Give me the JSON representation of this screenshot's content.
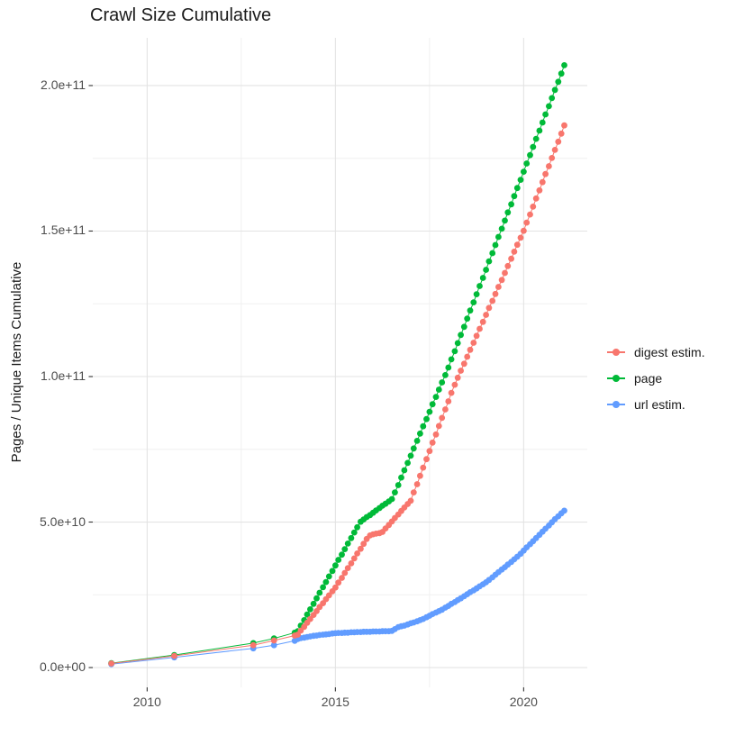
{
  "title": "Crawl Size Cumulative",
  "axes": {
    "y_title": "Pages / Unique Items Cumulative",
    "x_title": "",
    "y_ticks": [
      {
        "value_e9": 0,
        "label": "0.0e+00"
      },
      {
        "value_e9": 50,
        "label": "5.0e+10"
      },
      {
        "value_e9": 100,
        "label": "1.0e+11"
      },
      {
        "value_e9": 150,
        "label": "1.5e+11"
      },
      {
        "value_e9": 200,
        "label": "2.0e+11"
      }
    ],
    "x_ticks": [
      {
        "value": 2010,
        "label": "2010"
      },
      {
        "value": 2015,
        "label": "2015"
      },
      {
        "value": 2020,
        "label": "2020"
      }
    ],
    "y_minor_e9": [
      25,
      75,
      125,
      175
    ],
    "x_minor": [
      2012.5,
      2017.5
    ],
    "x_range": [
      2008.556,
      2021.69
    ],
    "y_range_e9": [
      -6.8,
      216.4
    ],
    "gridline_major_color": "#e3e3e3",
    "gridline_minor_color": "#f0f0f0",
    "tick_mark_color": "#333333"
  },
  "legend": {
    "position": "right",
    "items": [
      {
        "id": "digest-estim",
        "label": "digest estim.",
        "color": "#F8766D"
      },
      {
        "id": "page",
        "label": "page",
        "color": "#00BA38"
      },
      {
        "id": "url-estim",
        "label": "url estim.",
        "color": "#619CFF"
      }
    ]
  },
  "chart_data": {
    "type": "line",
    "marker": "point",
    "title": "Crawl Size Cumulative",
    "xlabel": "",
    "ylabel": "Pages / Unique Items Cumulative",
    "x_unit": "year (decimal)",
    "value_unit": "items, stored value x 1e9",
    "xlim": [
      2008.556,
      2021.69
    ],
    "ylim_e9": [
      -6.8,
      216.4
    ],
    "grid": true,
    "legend_position": "right",
    "series": [
      {
        "name": "digest estim.",
        "id": "digest-estim",
        "color": "#F8766D",
        "points": [
          [
            2009.05,
            1.4
          ],
          [
            2010.72,
            4.0
          ],
          [
            2012.82,
            7.7
          ],
          [
            2013.37,
            9.3
          ],
          [
            2013.92,
            11.0
          ],
          [
            2014.0,
            11.3
          ],
          [
            2014.08,
            12.7
          ],
          [
            2014.17,
            14.0
          ],
          [
            2014.25,
            15.4
          ],
          [
            2014.33,
            16.7
          ],
          [
            2014.42,
            18.1
          ],
          [
            2014.5,
            19.4
          ],
          [
            2014.58,
            20.8
          ],
          [
            2014.67,
            22.1
          ],
          [
            2014.75,
            23.5
          ],
          [
            2014.83,
            24.8
          ],
          [
            2014.92,
            26.2
          ],
          [
            2015.0,
            27.5
          ],
          [
            2015.08,
            29.2
          ],
          [
            2015.17,
            30.8
          ],
          [
            2015.25,
            32.5
          ],
          [
            2015.33,
            34.2
          ],
          [
            2015.42,
            35.8
          ],
          [
            2015.5,
            37.5
          ],
          [
            2015.58,
            39.2
          ],
          [
            2015.67,
            40.8
          ],
          [
            2015.75,
            42.5
          ],
          [
            2015.83,
            44.2
          ],
          [
            2015.92,
            45.4
          ],
          [
            2016.0,
            45.8
          ],
          [
            2016.08,
            46.0
          ],
          [
            2016.17,
            46.2
          ],
          [
            2016.25,
            46.6
          ],
          [
            2016.33,
            47.8
          ],
          [
            2016.42,
            49.0
          ],
          [
            2016.5,
            50.2
          ],
          [
            2016.58,
            51.4
          ],
          [
            2016.67,
            52.6
          ],
          [
            2016.75,
            53.8
          ],
          [
            2016.83,
            55.0
          ],
          [
            2016.92,
            56.2
          ],
          [
            2017.0,
            57.3
          ],
          [
            2017.08,
            60.2
          ],
          [
            2017.17,
            63.0
          ],
          [
            2017.25,
            65.9
          ],
          [
            2017.33,
            68.7
          ],
          [
            2017.42,
            71.6
          ],
          [
            2017.5,
            74.4
          ],
          [
            2017.58,
            77.3
          ],
          [
            2017.67,
            80.1
          ],
          [
            2017.75,
            83.0
          ],
          [
            2017.83,
            85.8
          ],
          [
            2017.92,
            88.7
          ],
          [
            2018.0,
            91.5
          ],
          [
            2018.08,
            94.4
          ],
          [
            2018.17,
            97.2
          ],
          [
            2018.25,
            99.6
          ],
          [
            2018.33,
            102.0
          ],
          [
            2018.42,
            104.4
          ],
          [
            2018.5,
            106.8
          ],
          [
            2018.58,
            109.2
          ],
          [
            2018.67,
            111.6
          ],
          [
            2018.75,
            114.0
          ],
          [
            2018.83,
            116.4
          ],
          [
            2018.92,
            118.8
          ],
          [
            2019.0,
            121.2
          ],
          [
            2019.08,
            123.6
          ],
          [
            2019.17,
            126.0
          ],
          [
            2019.25,
            128.4
          ],
          [
            2019.33,
            130.8
          ],
          [
            2019.42,
            133.2
          ],
          [
            2019.5,
            135.6
          ],
          [
            2019.58,
            138.0
          ],
          [
            2019.67,
            140.5
          ],
          [
            2019.75,
            142.9
          ],
          [
            2019.83,
            145.3
          ],
          [
            2019.92,
            147.7
          ],
          [
            2020.0,
            150.1
          ],
          [
            2020.08,
            152.9
          ],
          [
            2020.17,
            155.7
          ],
          [
            2020.25,
            158.4
          ],
          [
            2020.33,
            161.2
          ],
          [
            2020.42,
            164.0
          ],
          [
            2020.5,
            166.8
          ],
          [
            2020.58,
            169.6
          ],
          [
            2020.67,
            172.3
          ],
          [
            2020.75,
            175.1
          ],
          [
            2020.83,
            177.9
          ],
          [
            2020.92,
            180.7
          ],
          [
            2021.0,
            183.5
          ],
          [
            2021.08,
            186.3
          ]
        ]
      },
      {
        "name": "page",
        "id": "page",
        "color": "#00BA38",
        "points": [
          [
            2009.05,
            1.5
          ],
          [
            2010.72,
            4.3
          ],
          [
            2012.82,
            8.4
          ],
          [
            2013.37,
            10.0
          ],
          [
            2013.92,
            12.0
          ],
          [
            2014.0,
            12.5
          ],
          [
            2014.08,
            14.4
          ],
          [
            2014.17,
            16.3
          ],
          [
            2014.25,
            18.2
          ],
          [
            2014.33,
            20.0
          ],
          [
            2014.42,
            21.9
          ],
          [
            2014.5,
            23.8
          ],
          [
            2014.58,
            25.7
          ],
          [
            2014.67,
            27.6
          ],
          [
            2014.75,
            29.4
          ],
          [
            2014.83,
            31.3
          ],
          [
            2014.92,
            33.2
          ],
          [
            2015.0,
            35.1
          ],
          [
            2015.08,
            37.0
          ],
          [
            2015.17,
            38.8
          ],
          [
            2015.25,
            40.7
          ],
          [
            2015.33,
            42.6
          ],
          [
            2015.42,
            44.5
          ],
          [
            2015.5,
            46.4
          ],
          [
            2015.58,
            48.2
          ],
          [
            2015.67,
            50.1
          ],
          [
            2015.75,
            50.9
          ],
          [
            2015.83,
            51.7
          ],
          [
            2015.92,
            52.4
          ],
          [
            2016.0,
            53.2
          ],
          [
            2016.08,
            54.0
          ],
          [
            2016.17,
            54.8
          ],
          [
            2016.25,
            55.6
          ],
          [
            2016.33,
            56.3
          ],
          [
            2016.42,
            57.1
          ],
          [
            2016.5,
            57.9
          ],
          [
            2016.58,
            60.2
          ],
          [
            2016.67,
            62.7
          ],
          [
            2016.75,
            65.3
          ],
          [
            2016.83,
            67.8
          ],
          [
            2016.92,
            70.3
          ],
          [
            2017.0,
            72.8
          ],
          [
            2017.08,
            75.3
          ],
          [
            2017.17,
            77.9
          ],
          [
            2017.25,
            80.4
          ],
          [
            2017.33,
            82.9
          ],
          [
            2017.42,
            85.4
          ],
          [
            2017.5,
            87.9
          ],
          [
            2017.58,
            90.5
          ],
          [
            2017.67,
            93.0
          ],
          [
            2017.75,
            95.5
          ],
          [
            2017.83,
            98.0
          ],
          [
            2017.92,
            100.5
          ],
          [
            2018.0,
            103.1
          ],
          [
            2018.08,
            105.9
          ],
          [
            2018.17,
            108.7
          ],
          [
            2018.25,
            111.5
          ],
          [
            2018.33,
            114.3
          ],
          [
            2018.42,
            117.1
          ],
          [
            2018.5,
            119.9
          ],
          [
            2018.58,
            122.7
          ],
          [
            2018.67,
            125.5
          ],
          [
            2018.75,
            128.3
          ],
          [
            2018.83,
            131.1
          ],
          [
            2018.92,
            133.9
          ],
          [
            2019.0,
            136.7
          ],
          [
            2019.08,
            139.6
          ],
          [
            2019.17,
            142.4
          ],
          [
            2019.25,
            145.2
          ],
          [
            2019.33,
            148.0
          ],
          [
            2019.42,
            150.8
          ],
          [
            2019.5,
            153.6
          ],
          [
            2019.58,
            156.4
          ],
          [
            2019.67,
            159.2
          ],
          [
            2019.75,
            162.0
          ],
          [
            2019.83,
            164.8
          ],
          [
            2019.92,
            167.6
          ],
          [
            2020.0,
            170.4
          ],
          [
            2020.08,
            173.2
          ],
          [
            2020.17,
            176.1
          ],
          [
            2020.25,
            178.9
          ],
          [
            2020.33,
            181.7
          ],
          [
            2020.42,
            184.5
          ],
          [
            2020.5,
            187.3
          ],
          [
            2020.58,
            190.1
          ],
          [
            2020.67,
            192.9
          ],
          [
            2020.75,
            195.7
          ],
          [
            2020.83,
            198.5
          ],
          [
            2020.92,
            201.3
          ],
          [
            2021.0,
            204.1
          ],
          [
            2021.08,
            207.0
          ]
        ]
      },
      {
        "name": "url estim.",
        "id": "url-estim",
        "color": "#619CFF",
        "points": [
          [
            2009.05,
            1.2
          ],
          [
            2010.72,
            3.5
          ],
          [
            2012.82,
            6.6
          ],
          [
            2013.37,
            7.7
          ],
          [
            2013.92,
            9.2
          ],
          [
            2014.0,
            9.8
          ],
          [
            2014.08,
            10.1
          ],
          [
            2014.17,
            10.3
          ],
          [
            2014.25,
            10.5
          ],
          [
            2014.33,
            10.7
          ],
          [
            2014.42,
            10.9
          ],
          [
            2014.5,
            11.0
          ],
          [
            2014.58,
            11.2
          ],
          [
            2014.67,
            11.3
          ],
          [
            2014.75,
            11.4
          ],
          [
            2014.83,
            11.5
          ],
          [
            2014.92,
            11.7
          ],
          [
            2015.0,
            11.8
          ],
          [
            2015.08,
            11.9
          ],
          [
            2015.17,
            11.9
          ],
          [
            2015.25,
            12.0
          ],
          [
            2015.33,
            12.0
          ],
          [
            2015.42,
            12.1
          ],
          [
            2015.5,
            12.1
          ],
          [
            2015.58,
            12.2
          ],
          [
            2015.67,
            12.2
          ],
          [
            2015.75,
            12.3
          ],
          [
            2015.83,
            12.3
          ],
          [
            2015.92,
            12.3
          ],
          [
            2016.0,
            12.4
          ],
          [
            2016.08,
            12.4
          ],
          [
            2016.17,
            12.4
          ],
          [
            2016.25,
            12.5
          ],
          [
            2016.33,
            12.5
          ],
          [
            2016.42,
            12.5
          ],
          [
            2016.5,
            12.6
          ],
          [
            2016.58,
            13.2
          ],
          [
            2016.67,
            13.9
          ],
          [
            2016.75,
            14.2
          ],
          [
            2016.83,
            14.4
          ],
          [
            2016.92,
            14.8
          ],
          [
            2017.0,
            15.2
          ],
          [
            2017.08,
            15.5
          ],
          [
            2017.17,
            15.9
          ],
          [
            2017.25,
            16.3
          ],
          [
            2017.33,
            16.7
          ],
          [
            2017.42,
            17.3
          ],
          [
            2017.5,
            17.8
          ],
          [
            2017.58,
            18.4
          ],
          [
            2017.67,
            18.9
          ],
          [
            2017.75,
            19.4
          ],
          [
            2017.83,
            19.9
          ],
          [
            2017.92,
            20.6
          ],
          [
            2018.0,
            21.2
          ],
          [
            2018.08,
            21.9
          ],
          [
            2018.17,
            22.5
          ],
          [
            2018.25,
            23.2
          ],
          [
            2018.33,
            23.8
          ],
          [
            2018.42,
            24.5
          ],
          [
            2018.5,
            25.2
          ],
          [
            2018.58,
            25.9
          ],
          [
            2018.67,
            26.5
          ],
          [
            2018.75,
            27.2
          ],
          [
            2018.83,
            27.9
          ],
          [
            2018.92,
            28.6
          ],
          [
            2019.0,
            29.3
          ],
          [
            2019.08,
            30.1
          ],
          [
            2019.17,
            31.0
          ],
          [
            2019.25,
            31.9
          ],
          [
            2019.33,
            32.8
          ],
          [
            2019.42,
            33.7
          ],
          [
            2019.5,
            34.5
          ],
          [
            2019.58,
            35.4
          ],
          [
            2019.67,
            36.3
          ],
          [
            2019.75,
            37.2
          ],
          [
            2019.83,
            38.1
          ],
          [
            2019.92,
            39.1
          ],
          [
            2020.0,
            40.2
          ],
          [
            2020.08,
            41.3
          ],
          [
            2020.17,
            42.4
          ],
          [
            2020.25,
            43.4
          ],
          [
            2020.33,
            44.5
          ],
          [
            2020.42,
            45.6
          ],
          [
            2020.5,
            46.7
          ],
          [
            2020.58,
            47.7
          ],
          [
            2020.67,
            48.8
          ],
          [
            2020.75,
            49.9
          ],
          [
            2020.83,
            51.0
          ],
          [
            2020.92,
            52.0
          ],
          [
            2021.0,
            53.0
          ],
          [
            2021.08,
            53.9
          ]
        ]
      }
    ]
  }
}
